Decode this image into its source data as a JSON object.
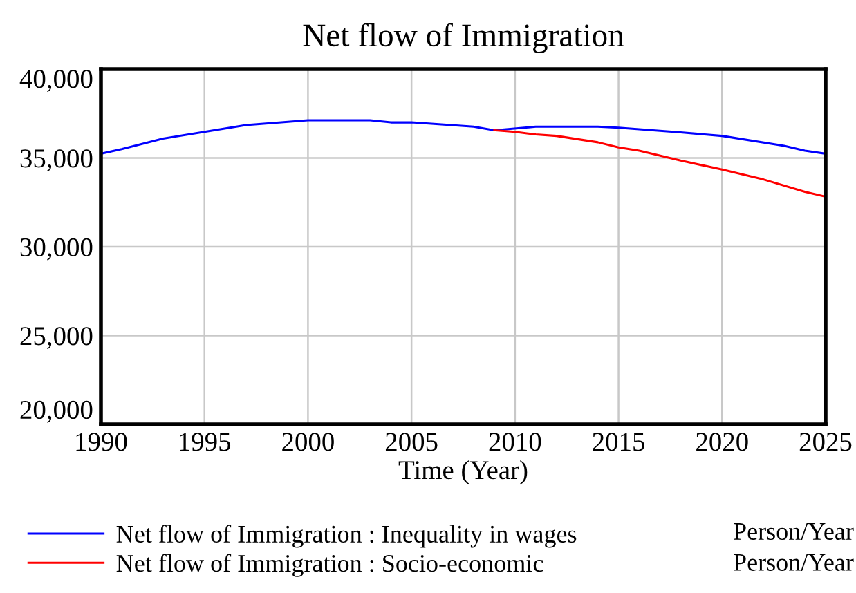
{
  "chart_data": {
    "type": "line",
    "title": "Net flow of Immigration",
    "xlabel": "Time (Year)",
    "xlim": [
      1990,
      2025
    ],
    "xticks": [
      1990,
      1995,
      2000,
      2005,
      2010,
      2015,
      2020,
      2025
    ],
    "ylim": [
      20000,
      40000
    ],
    "yticks": [
      {
        "value": 20000,
        "label": "20,000"
      },
      {
        "value": 25000,
        "label": "25,000"
      },
      {
        "value": 30000,
        "label": "30,000"
      },
      {
        "value": 35000,
        "label": "35,000"
      },
      {
        "value": 40000,
        "label": "40,000"
      }
    ],
    "grid": true,
    "legend": "bottom",
    "line_style": "solid",
    "annotations": [
      "Person/Year",
      "Person/Year"
    ],
    "series": [
      {
        "name": "Net flow of Immigration : Inequality in wages",
        "color": "#0000ff",
        "x": [
          1990,
          1991,
          1993,
          1995,
          1997,
          2000,
          2003,
          2004,
          2005,
          2008,
          2009,
          2011,
          2014,
          2015,
          2018,
          2020,
          2023,
          2024,
          2025
        ],
        "values": [
          35240,
          35500,
          36090,
          36470,
          36850,
          37120,
          37120,
          37000,
          37000,
          36760,
          36560,
          36760,
          36760,
          36700,
          36440,
          36240,
          35680,
          35410,
          35240
        ]
      },
      {
        "name": "Net flow of Immigration : Socio-economic",
        "color": "#ff0000",
        "x": [
          2009,
          2010,
          2011,
          2012,
          2014,
          2015,
          2016,
          2018,
          2020,
          2022,
          2024,
          2025
        ],
        "values": [
          36560,
          36470,
          36320,
          36240,
          35880,
          35590,
          35410,
          34850,
          34350,
          33790,
          33090,
          32820
        ]
      }
    ]
  }
}
